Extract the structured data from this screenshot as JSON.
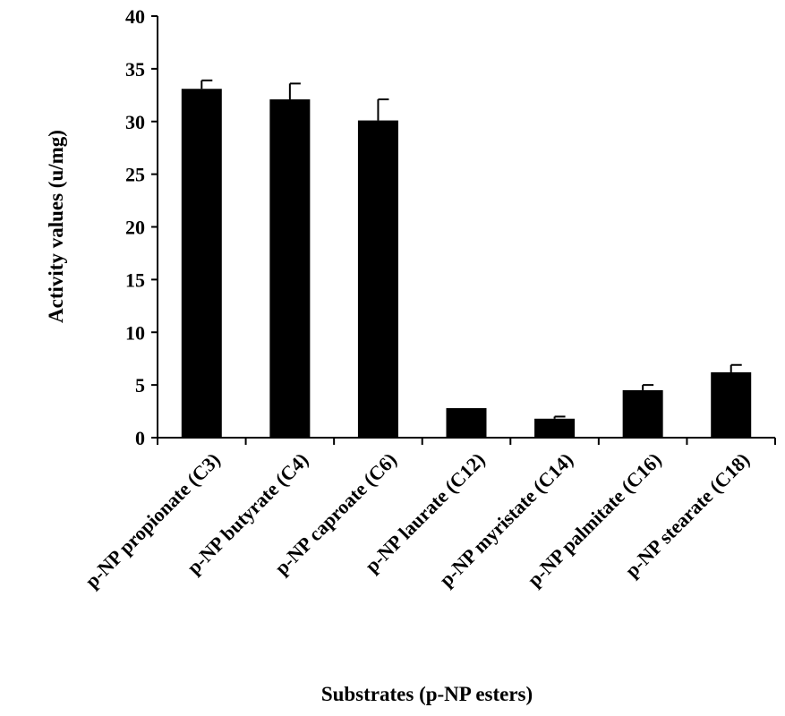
{
  "chart_data": {
    "type": "bar",
    "categories": [
      "p-NP propionate (C3)",
      "p-NP butyrate (C4)",
      "p-NP caproate (C6)",
      "p-NP laurate (C12)",
      "p-NP myristate (C14)",
      "p-NP palmitate (C16)",
      "p-NP stearate (C18)"
    ],
    "values": [
      33.1,
      32.1,
      30.1,
      2.8,
      1.8,
      4.5,
      6.2
    ],
    "errors": [
      0.8,
      1.5,
      2.0,
      0.0,
      0.2,
      0.5,
      0.7
    ],
    "xlabel": "Substrates (p-NP esters)",
    "ylabel": "Activity values (u/mg)",
    "ylim": [
      0,
      40
    ],
    "yticks": [
      "0",
      "5",
      "10",
      "15",
      "20",
      "25",
      "30",
      "35",
      "40"
    ],
    "grid": false,
    "bar_color": "#000000"
  }
}
